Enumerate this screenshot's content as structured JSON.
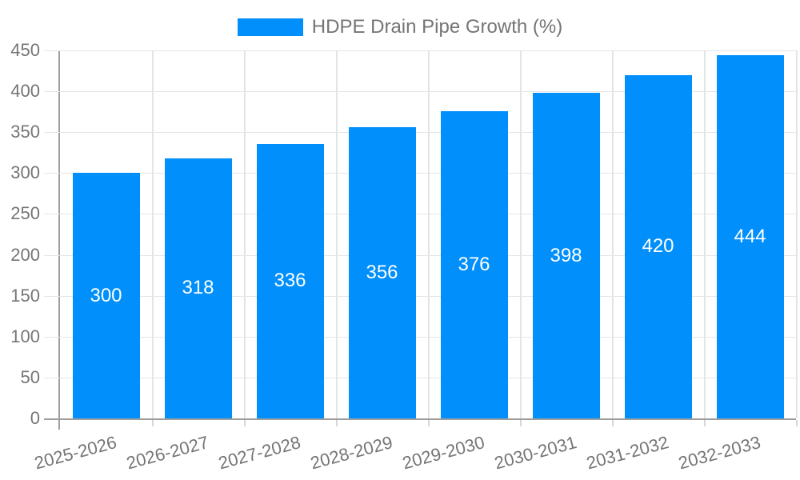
{
  "chart_data": {
    "type": "bar",
    "title": "HDPE Drain Pipe Growth (%)",
    "categories": [
      "2025-2026",
      "2026-2027",
      "2027-2028",
      "2028-2029",
      "2029-2030",
      "2030-2031",
      "2031-2032",
      "2032-2033"
    ],
    "values": [
      300,
      318,
      336,
      356,
      376,
      398,
      420,
      444
    ],
    "yticks": [
      0,
      50,
      100,
      150,
      200,
      250,
      300,
      350,
      400,
      450
    ],
    "ylim": [
      0,
      450
    ],
    "xlabel": "",
    "ylabel": "",
    "grid": true,
    "legend_position": "top-center",
    "x_label_rotation_deg": -15,
    "bar_color": "#008FFB",
    "grid_color": "#e5e5e5",
    "axis_color": "#9e9e9e",
    "tick_label_color": "#757575",
    "value_label_color": "#ffffff"
  }
}
